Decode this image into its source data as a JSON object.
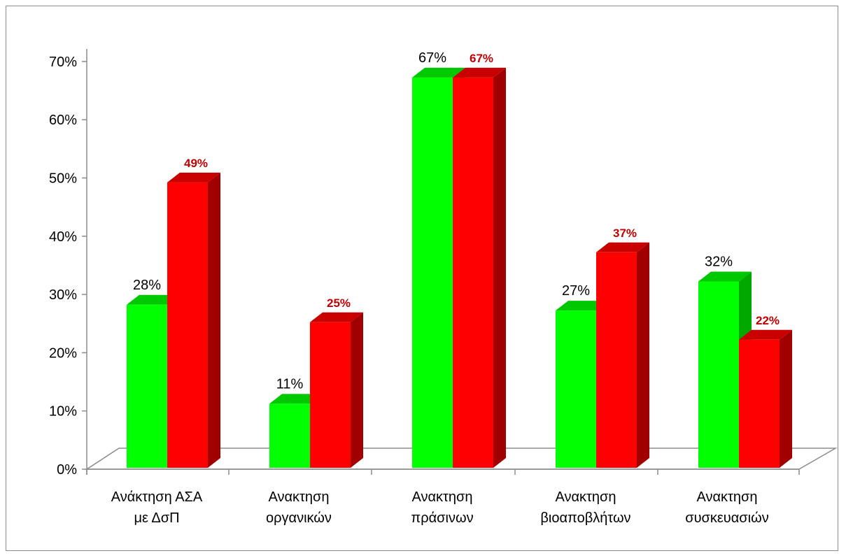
{
  "chart_data": {
    "type": "bar",
    "categories": [
      [
        "Ανάκτηση ΑΣΑ",
        "με ΔσΠ"
      ],
      [
        "Ανακτηση",
        "οργανικών"
      ],
      [
        "Ανακτηση",
        "πράσινων"
      ],
      [
        "Ανακτηση",
        "βιοαποβλήτων"
      ],
      [
        "Ανακτηση",
        "συσκευασιών"
      ]
    ],
    "series": [
      {
        "values": [
          28,
          11,
          67,
          27,
          32
        ],
        "labels": [
          "28%",
          "11%",
          "67%",
          "27%",
          "32%"
        ],
        "color": "#00ff00",
        "side_color": "#00a800",
        "top_color": "#00c800"
      },
      {
        "values": [
          49,
          25,
          67,
          37,
          22
        ],
        "labels": [
          "49%",
          "25%",
          "67%",
          "37%",
          "22%"
        ],
        "color": "#ff0000",
        "side_color": "#a00000",
        "top_color": "#c80000"
      }
    ],
    "yticks": [
      "0%",
      "10%",
      "20%",
      "30%",
      "40%",
      "50%",
      "60%",
      "70%"
    ],
    "ylim": [
      0,
      70
    ],
    "title": "",
    "xlabel": "",
    "ylabel": "",
    "legend": "none",
    "grid": false,
    "style": "3d-clustered-column"
  }
}
